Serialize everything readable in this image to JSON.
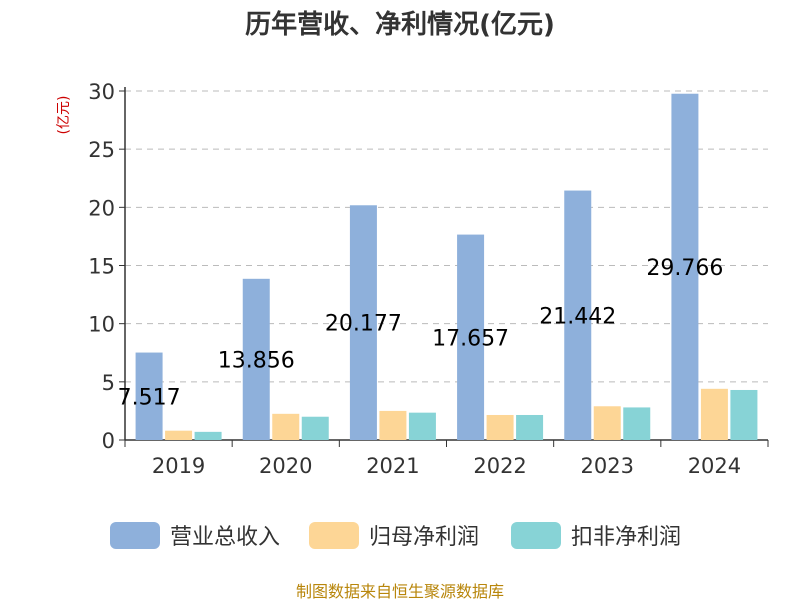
{
  "colors": {
    "title": "#333333",
    "ylabel": "#cc0000",
    "source": "#b8860b",
    "grid": "#bbbbbb",
    "axis": "#333333"
  },
  "chart_data": {
    "type": "bar",
    "title": "历年营收、净利情况(亿元)",
    "ylabel": "(亿元)",
    "xlabel": "",
    "categories": [
      "2019",
      "2020",
      "2021",
      "2022",
      "2023",
      "2024"
    ],
    "ylim": [
      0,
      30
    ],
    "yticks": [
      0,
      5,
      10,
      15,
      20,
      25,
      30
    ],
    "grid": true,
    "grid_style": "dashed",
    "legend_position": "bottom",
    "series": [
      {
        "name": "营业总收入",
        "color": "#8eb0db",
        "values": [
          7.517,
          13.856,
          20.177,
          17.657,
          21.442,
          29.766
        ],
        "labels": [
          "7.517",
          "13.856",
          "20.177",
          "17.657",
          "21.442",
          "29.766"
        ]
      },
      {
        "name": "归母净利润",
        "color": "#fdd696",
        "values": [
          0.8,
          2.25,
          2.5,
          2.15,
          2.9,
          4.4
        ]
      },
      {
        "name": "扣非净利润",
        "color": "#87d3d6",
        "values": [
          0.7,
          2.0,
          2.35,
          2.15,
          2.8,
          4.3
        ]
      }
    ]
  },
  "source_text": "制图数据来自恒生聚源数据库"
}
